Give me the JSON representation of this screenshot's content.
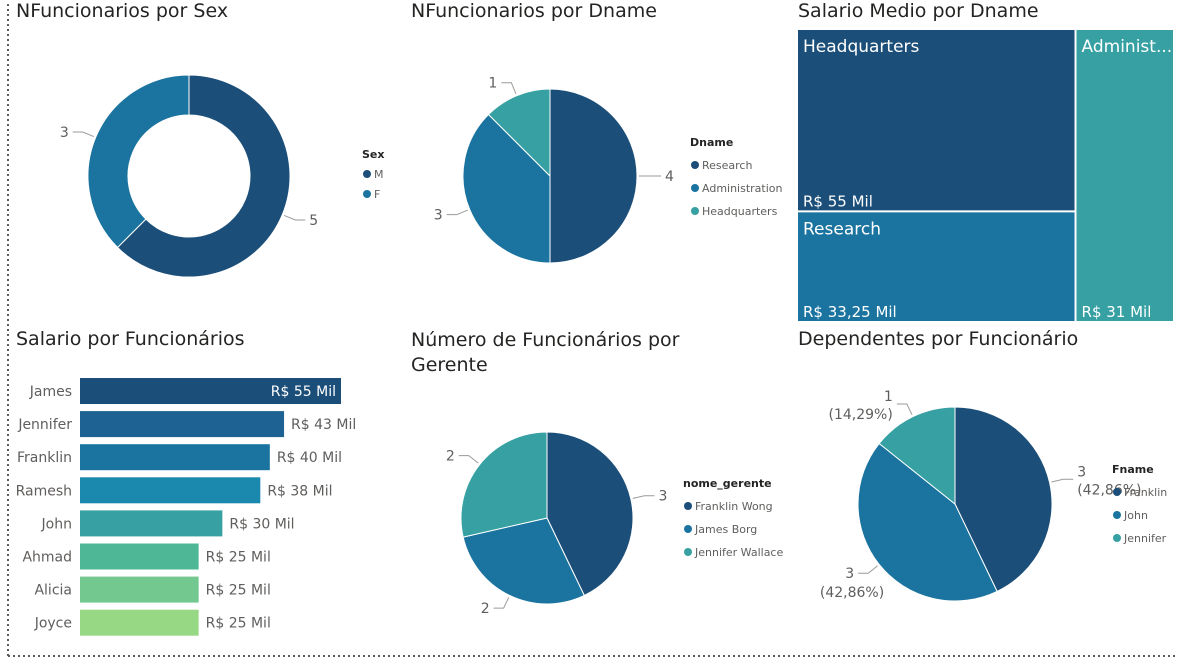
{
  "colors": {
    "c1": "#1b4e78",
    "c2": "#1b74a0",
    "c3": "#36a0a3",
    "bar_colors": [
      "#1b4e78",
      "#1d6293",
      "#1b74a0",
      "#1b89ad",
      "#36a0a3",
      "#4eb896",
      "#72c88f",
      "#97d884"
    ],
    "label_gray": "#605e5c",
    "border": "#5a5a5a"
  },
  "titles": {
    "sex": "NFuncionarios por Sex",
    "dname": "NFuncionarios por Dname",
    "salario_dname": "Salario Medio por Dname",
    "salario_func": "Salario por Funcionários",
    "gerente": "Número de Funcionários por Gerente",
    "dependentes": "Dependentes por Funcionário"
  },
  "chart_data": [
    {
      "id": "sex",
      "type": "donut",
      "title": "NFuncionarios por Sex",
      "legend_title": "Sex",
      "legend_position": "right",
      "categories": [
        "M",
        "F"
      ],
      "values": [
        5,
        3
      ],
      "labels": [
        "5",
        "3"
      ]
    },
    {
      "id": "dname",
      "type": "pie",
      "title": "NFuncionarios por Dname",
      "legend_title": "Dname",
      "legend_position": "right",
      "categories": [
        "Research",
        "Administration",
        "Headquarters"
      ],
      "values": [
        4,
        3,
        1
      ],
      "labels": [
        "4",
        "3",
        "1"
      ]
    },
    {
      "id": "salario_dname",
      "type": "treemap",
      "title": "Salario Medio por Dname",
      "categories": [
        "Headquarters",
        "Research",
        "Administ..."
      ],
      "values": [
        55000,
        33250,
        31000
      ],
      "value_labels": [
        "R$ 55 Mil",
        "R$ 33,25 Mil",
        "R$ 31 Mil"
      ]
    },
    {
      "id": "salario_func",
      "type": "bar",
      "orientation": "horizontal",
      "title": "Salario por Funcionários",
      "categories": [
        "James",
        "Jennifer",
        "Franklin",
        "Ramesh",
        "John",
        "Ahmad",
        "Alicia",
        "Joyce"
      ],
      "values": [
        55000,
        43000,
        40000,
        38000,
        30000,
        25000,
        25000,
        25000
      ],
      "value_labels": [
        "R$ 55 Mil",
        "R$ 43 Mil",
        "R$ 40 Mil",
        "R$ 38 Mil",
        "R$ 30 Mil",
        "R$ 25 Mil",
        "R$ 25 Mil",
        "R$ 25 Mil"
      ],
      "xlim": [
        0,
        55000
      ]
    },
    {
      "id": "gerente",
      "type": "pie",
      "title": "Número de Funcionários por Gerente",
      "legend_title": "nome_gerente",
      "legend_position": "right",
      "categories": [
        "Franklin Wong",
        "James Borg",
        "Jennifer Wallace"
      ],
      "values": [
        3,
        2,
        2
      ],
      "labels": [
        "3",
        "2",
        "2"
      ]
    },
    {
      "id": "dependentes",
      "type": "pie",
      "title": "Dependentes por Funcionário",
      "legend_title": "Fname",
      "legend_position": "right",
      "categories": [
        "Franklin",
        "John",
        "Jennifer"
      ],
      "values": [
        3,
        3,
        1
      ],
      "labels": [
        "3",
        "3",
        "1"
      ],
      "percent_labels": [
        "(42,86%)",
        "(42,86%)",
        "(14,29%)"
      ]
    }
  ]
}
